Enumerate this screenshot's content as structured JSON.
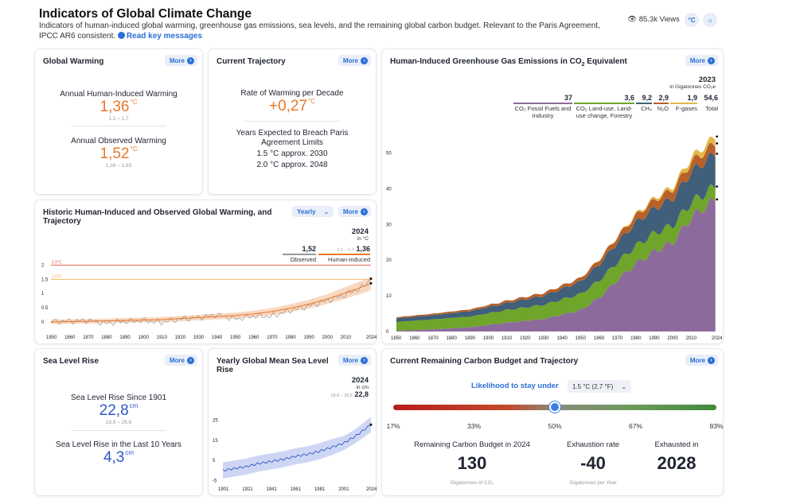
{
  "header": {
    "title": "Indicators of Global Climate Change",
    "subtitle": "Indicators of human-induced global warming, greenhouse gas emissions, sea levels, and the remaining global carbon budget. Relevant to the Paris Agreement, IPCC AR6 consistent.",
    "read_key": "Read key messages",
    "views": "85.3k Views",
    "unit_toggle": "°C",
    "theme_icon": "sun-icon"
  },
  "more_label": "More",
  "global_warming": {
    "title": "Global Warming",
    "annual_label": "Annual Human-Induced Warming",
    "annual_value": "1,36",
    "annual_unit": "°C",
    "annual_range": "1,1 – 1,7",
    "observed_label": "Annual Observed Warming",
    "observed_value": "1,52",
    "observed_unit": "°C",
    "observed_range": "1,39 – 1,65"
  },
  "trajectory": {
    "title": "Current Trajectory",
    "rate_label": "Rate of Warming per Decade",
    "rate_value": "+0,27",
    "rate_unit": "°C",
    "breach_label": "Years Expected to Breach Paris Agreement Limits",
    "breach_15": "1.5 °C approx. 2030",
    "breach_20": "2.0 °C approx. 2048"
  },
  "historic": {
    "title": "Historic Human-Induced and Observed Global Warming, and Trajectory",
    "dropdown": "Yearly",
    "year": "2024",
    "unit": "in °C",
    "observed_value": "1,52",
    "observed_label": "Observed",
    "human_range": "1,1 – 1,7",
    "human_value": "1,36",
    "human_label": "Human-induced",
    "line_20": "2,0°C",
    "line_15": "1,5°C",
    "y_ticks": [
      "2",
      "1.5",
      "1",
      "0.5",
      "0"
    ],
    "x_ticks": [
      "1850",
      "1860",
      "1870",
      "1880",
      "1890",
      "1900",
      "1910",
      "1920",
      "1930",
      "1940",
      "1950",
      "1960",
      "1970",
      "1980",
      "1990",
      "2000",
      "2010",
      "2024"
    ]
  },
  "emissions": {
    "title_pre": "Human-Induced Greenhouse Gas Emissions in CO",
    "title_sub": "2",
    "title_post": " Equivalent",
    "year": "2023",
    "unit": "in Gigatonnes CO₂e",
    "legend": [
      {
        "value": "37",
        "label": "CO₂ Fossil Fuels and Industry",
        "color": "#8c6b9c"
      },
      {
        "value": "3,6",
        "label": "CO₂ Land-use, Land-use change, Forestry",
        "color": "#6fa52a"
      },
      {
        "value": "9,2",
        "label": "CH₄",
        "color": "#3f5f7a"
      },
      {
        "value": "2,9",
        "label": "N₂O",
        "color": "#b8612a"
      },
      {
        "value": "1,9",
        "label": "F-gases",
        "color": "#e3b84a"
      },
      {
        "value": "54,6",
        "label": "Total",
        "color": "#222222"
      }
    ],
    "y_ticks": [
      "50",
      "40",
      "30",
      "20",
      "10",
      "0"
    ],
    "x_ticks": [
      "1850",
      "1860",
      "1870",
      "1880",
      "1890",
      "1900",
      "1910",
      "1920",
      "1930",
      "1940",
      "1950",
      "1960",
      "1970",
      "1980",
      "1990",
      "2000",
      "2010",
      "2024"
    ]
  },
  "sea_level": {
    "title": "Sea Level Rise",
    "since_label": "Sea Level Rise Since 1901",
    "since_value": "22,8",
    "since_unit": "cm",
    "since_range": "18,9 – 26,6",
    "last10_label": "Sea Level Rise in the Last 10 Years",
    "last10_value": "4,3",
    "last10_unit": "cm"
  },
  "yearly_sea": {
    "title": "Yearly Global Mean Sea Level Rise",
    "year": "2024",
    "unit": "in cm",
    "range": "18,9 – 26,6",
    "value": "22,8",
    "y_ticks": [
      "25",
      "15",
      "5",
      "-5"
    ],
    "x_ticks": [
      "1901",
      "1921",
      "1941",
      "1961",
      "1981",
      "2001",
      "2024"
    ]
  },
  "carbon_budget": {
    "title": "Current Remaining Carbon Budget and Trajectory",
    "likelihood_label": "Likelihood to stay under",
    "likelihood_select": "1.5 °C (2.7 °F)",
    "slider_ticks": [
      "17%",
      "33%",
      "50%",
      "67%",
      "83%"
    ],
    "slider_value": 0.5,
    "remaining_label": "Remaining Carbon Budget in 2024",
    "remaining_value": "130",
    "remaining_unit": "Gigatonnes of CO₂",
    "rate_label": "Exhaustion rate",
    "rate_value": "-40",
    "rate_unit": "Gigatonnes per Year",
    "exhausted_label": "Exhausted in",
    "exhausted_value": "2028"
  },
  "chart_data": [
    {
      "type": "line",
      "title": "Historic Human-Induced and Observed Global Warming, and Trajectory",
      "ylabel": "°C",
      "ylim": [
        -0.2,
        2.1
      ],
      "xlim": [
        1850,
        2024
      ],
      "series": [
        {
          "name": "Human-induced",
          "x": [
            1850,
            1870,
            1890,
            1910,
            1930,
            1950,
            1960,
            1970,
            1980,
            1990,
            2000,
            2010,
            2020,
            2024
          ],
          "values": [
            0.0,
            0.02,
            0.05,
            0.08,
            0.15,
            0.22,
            0.28,
            0.36,
            0.48,
            0.62,
            0.8,
            1.02,
            1.25,
            1.36
          ]
        },
        {
          "name": "Observed",
          "x": [
            1850,
            1870,
            1880,
            1890,
            1900,
            1910,
            1920,
            1930,
            1940,
            1950,
            1960,
            1970,
            1980,
            1990,
            2000,
            2010,
            2020,
            2024
          ],
          "values": [
            0.0,
            0.05,
            -0.05,
            0.02,
            0.05,
            -0.02,
            0.1,
            0.15,
            0.25,
            0.1,
            0.2,
            0.2,
            0.4,
            0.55,
            0.75,
            0.95,
            1.25,
            1.52
          ]
        }
      ],
      "reference_lines": [
        {
          "label": "2,0°C",
          "value": 2.0
        },
        {
          "label": "1,5°C",
          "value": 1.5
        }
      ]
    },
    {
      "type": "area",
      "title": "Human-Induced Greenhouse Gas Emissions in CO2 Equivalent",
      "ylabel": "Gigatonnes CO₂e",
      "ylim": [
        0,
        55
      ],
      "x": [
        1850,
        1870,
        1890,
        1910,
        1930,
        1950,
        1960,
        1970,
        1980,
        1990,
        2000,
        2010,
        2023
      ],
      "series": [
        {
          "name": "CO₂ Fossil Fuels and Industry",
          "values": [
            0.2,
            0.6,
            1.2,
            2.5,
            3.5,
            6.0,
            9.5,
            14.5,
            19.0,
            22.5,
            25.0,
            32.0,
            37.0
          ]
        },
        {
          "name": "CO₂ Land-use, Land-use change, Forestry",
          "values": [
            2.5,
            2.8,
            3.0,
            3.5,
            4.0,
            4.5,
            4.8,
            5.0,
            5.0,
            5.0,
            4.8,
            4.2,
            3.6
          ]
        },
        {
          "name": "CH₄",
          "values": [
            1.0,
            1.2,
            1.5,
            2.0,
            2.5,
            3.5,
            4.5,
            5.5,
            6.5,
            7.0,
            7.5,
            8.5,
            9.2
          ]
        },
        {
          "name": "N₂O",
          "values": [
            0.3,
            0.4,
            0.5,
            0.6,
            0.8,
            1.0,
            1.3,
            1.6,
            2.0,
            2.3,
            2.5,
            2.7,
            2.9
          ]
        },
        {
          "name": "F-gases",
          "values": [
            0,
            0,
            0,
            0,
            0,
            0,
            0.1,
            0.2,
            0.4,
            0.6,
            0.8,
            1.3,
            1.9
          ]
        }
      ]
    },
    {
      "type": "line",
      "title": "Yearly Global Mean Sea Level Rise",
      "ylabel": "cm",
      "ylim": [
        -6,
        28
      ],
      "x": [
        1901,
        1911,
        1921,
        1931,
        1941,
        1951,
        1961,
        1971,
        1981,
        1991,
        2001,
        2011,
        2024
      ],
      "series": [
        {
          "name": "Sea level",
          "values": [
            0,
            1.0,
            2.0,
            3.5,
            4.5,
            5.5,
            7.0,
            8.0,
            9.5,
            11.5,
            13.5,
            17.0,
            22.8
          ],
          "lower": [
            -4,
            -3,
            -2,
            -0.5,
            0.5,
            1.5,
            3,
            4,
            5.5,
            7.5,
            10,
            13.5,
            19
          ],
          "upper": [
            4,
            5,
            6,
            7.5,
            8.5,
            9.5,
            11,
            12,
            13.5,
            15.5,
            17,
            20.5,
            26.6
          ]
        }
      ]
    }
  ]
}
